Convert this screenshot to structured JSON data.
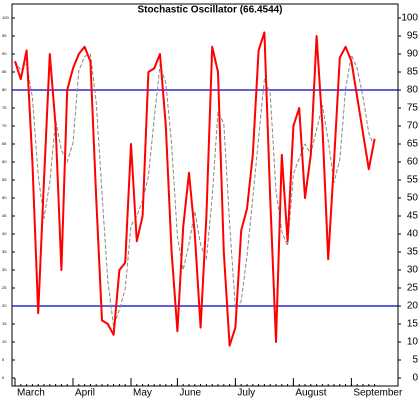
{
  "chart_data": {
    "type": "line",
    "title": "Stochastic Oscillator (66.4544)",
    "categories": [
      "March",
      null,
      null,
      null,
      null,
      null,
      null,
      null,
      null,
      null,
      "April",
      null,
      null,
      null,
      null,
      null,
      null,
      null,
      null,
      null,
      "May",
      null,
      null,
      null,
      null,
      null,
      null,
      null,
      "June",
      null,
      null,
      null,
      null,
      null,
      null,
      null,
      null,
      null,
      "July",
      null,
      null,
      null,
      null,
      null,
      null,
      null,
      null,
      null,
      "August",
      null,
      null,
      null,
      null,
      null,
      null,
      null,
      null,
      null,
      "September",
      null,
      null,
      null,
      null
    ],
    "series": [
      {
        "color": "#ff0000",
        "style": "solid",
        "values": [
          88,
          83,
          91,
          60,
          18,
          55,
          90,
          70,
          30,
          80,
          86,
          90,
          92,
          88,
          50,
          16,
          15,
          12,
          30,
          32,
          65,
          38,
          45,
          85,
          86,
          90,
          70,
          35,
          13,
          42,
          57,
          40,
          14,
          45,
          92,
          85,
          35,
          9,
          14,
          41,
          47,
          62,
          91,
          96,
          50,
          10,
          62,
          38,
          70,
          75,
          50,
          62,
          95,
          70,
          33,
          60,
          89,
          92,
          88,
          78,
          68,
          58,
          66.4544
        ]
      },
      {
        "color": "#888888",
        "style": "dashed",
        "values": [
          88,
          85.5,
          87.3,
          78,
          56.3,
          44.3,
          54.3,
          71.7,
          63.3,
          60,
          65.3,
          85.3,
          89.3,
          90,
          76.7,
          51.3,
          27,
          14.3,
          19,
          24.7,
          42.3,
          45,
          49.3,
          56,
          72,
          87,
          82,
          65,
          39.3,
          30,
          37.3,
          46.3,
          37,
          33,
          50.3,
          74,
          70.7,
          43,
          19.3,
          21.3,
          34,
          50,
          66.7,
          83,
          79,
          52,
          40.7,
          36.7,
          56.7,
          61,
          65,
          62.3,
          69,
          75.7,
          66,
          54.3,
          60.7,
          80.3,
          89.7,
          86,
          78,
          68,
          64
        ]
      }
    ],
    "hlines": [
      20,
      80
    ],
    "hline_color": "#0000cc",
    "ylim": [
      0,
      100
    ],
    "yticks": [
      0,
      5,
      10,
      15,
      20,
      25,
      30,
      35,
      40,
      45,
      50,
      55,
      60,
      65,
      70,
      75,
      80,
      85,
      90,
      95,
      100
    ]
  }
}
